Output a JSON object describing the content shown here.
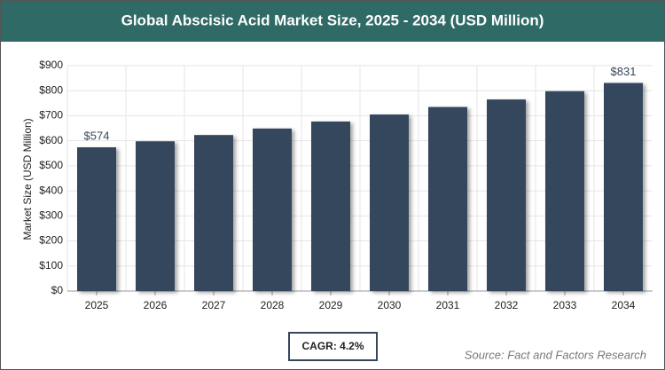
{
  "chart_data": {
    "type": "bar",
    "title": "Global Abscisic Acid Market Size, 2025 - 2034 (USD Million)",
    "y_label": "Market Size (USD Million)",
    "categories": [
      "2025",
      "2026",
      "2027",
      "2028",
      "2029",
      "2030",
      "2031",
      "2032",
      "2033",
      "2034"
    ],
    "values": [
      574,
      598,
      623,
      649,
      677,
      705,
      735,
      765,
      798,
      831
    ],
    "value_labels": [
      "$574",
      null,
      null,
      null,
      null,
      null,
      null,
      null,
      null,
      "$831"
    ],
    "color": "#36475c",
    "ylim": [
      0,
      900
    ],
    "yticks": [
      {
        "value": 0,
        "label": "$0"
      },
      {
        "value": 100,
        "label": "$100"
      },
      {
        "value": 200,
        "label": "$200"
      },
      {
        "value": 300,
        "label": "$300"
      },
      {
        "value": 400,
        "label": "$400"
      },
      {
        "value": 500,
        "label": "$500"
      },
      {
        "value": 600,
        "label": "$600"
      },
      {
        "value": 700,
        "label": "$700"
      },
      {
        "value": 800,
        "label": "$800"
      },
      {
        "value": 900,
        "label": "$900"
      }
    ],
    "grid": true,
    "annotation": "CAGR: 4.2%",
    "source": "Source: Fact and Factors Research"
  }
}
